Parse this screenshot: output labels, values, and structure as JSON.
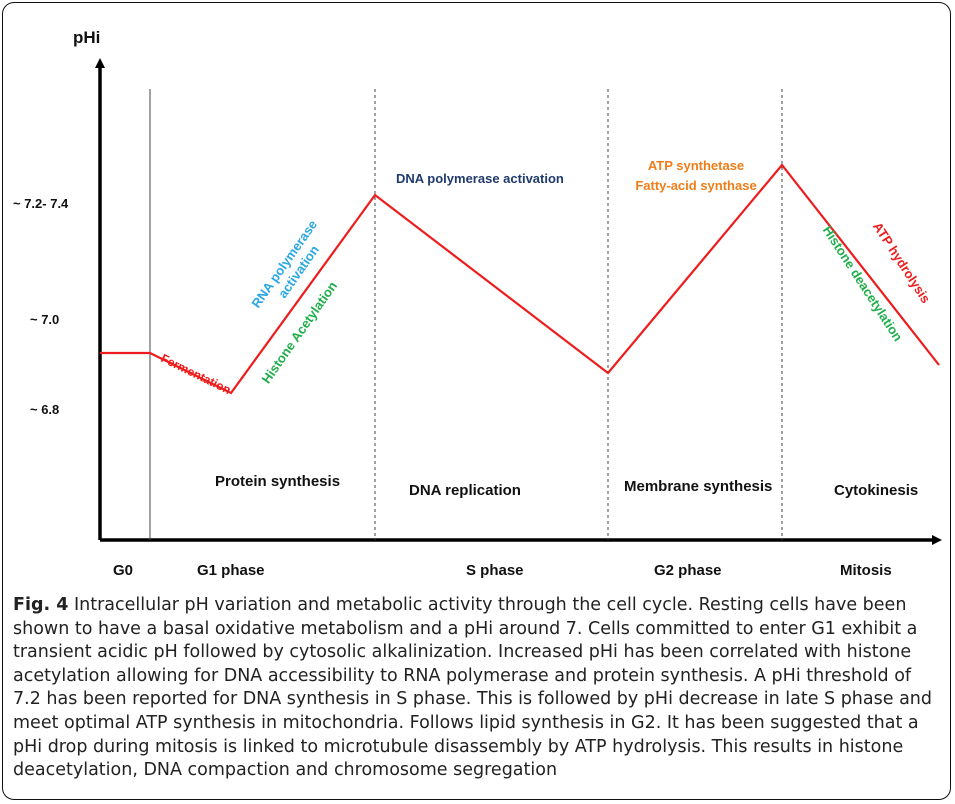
{
  "diagram": {
    "y_axis_label": "pHi",
    "y_ticks": [
      "~ 7.2- 7.4",
      "~ 7.0",
      "~ 6.8"
    ],
    "phases": [
      "G0",
      "G1 phase",
      "S phase",
      "G2 phase",
      "Mitosis"
    ],
    "activities": [
      "Protein synthesis",
      "DNA replication",
      "Membrane synthesis",
      "Cytokinesis"
    ],
    "annotations": {
      "fermentation": "Fermentation",
      "rna_polymerase_line1": "RNA polymerase",
      "rna_polymerase_line2": "activation",
      "histone_acetylation": "Histone Acetylation",
      "dna_polymerase": "DNA polymerase activation",
      "atp_synthetase": "ATP synthetase",
      "fatty_acid_synthase": "Fatty-acid synthase",
      "histone_deacetylation": "Histone deacetylation",
      "atp_hydrolysis": "ATP hydrolysis"
    },
    "colors": {
      "curve": "#ee1c1c",
      "fermentation": "#ee1c1c",
      "rna_polymerase": "#2aa7e0",
      "histone_acetylation": "#1fae4b",
      "dna_polymerase": "#1f3a6e",
      "atp_synthetase": "#f07d18",
      "histone_deacetylation": "#1fae4b",
      "atp_hydrolysis": "#ee1c1c"
    }
  },
  "caption": {
    "figure_label": "Fig. 4",
    "text": " Intracellular pH variation and metabolic activity through the cell cycle. Resting cells have been shown to have a basal oxidative metabolism and a pHi around 7. Cells committed to enter G1 exhibit a transient acidic pH followed by cytosolic alkalinization. Increased pHi has been correlated with histone acetylation allowing for DNA accessibility to RNA polymerase and protein synthesis. A pHi threshold of 7.2 has been reported for DNA synthesis in S phase. This is followed by pHi decrease in late S phase and meet optimal ATP synthesis in mitochondria. Follows lipid synthesis in G2. It has been suggested that a pHi drop during mitosis is linked to microtubule disassembly by ATP hydrolysis. This results in histone deacetylation, DNA compaction and chromosome segregation"
  }
}
